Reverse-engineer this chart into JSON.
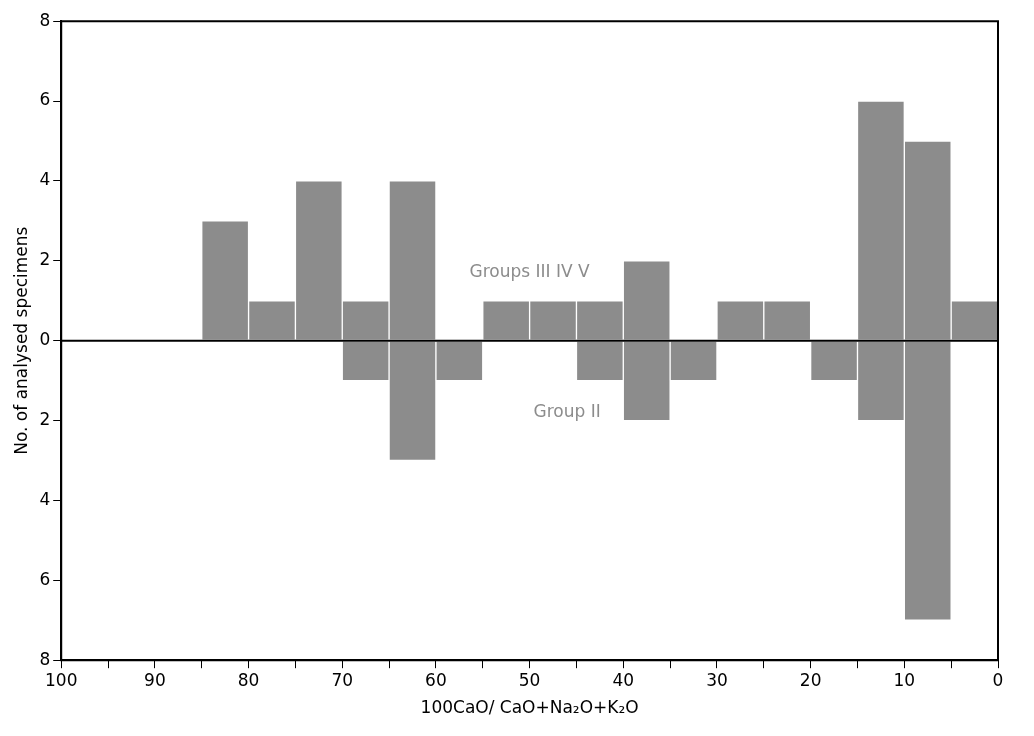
{
  "chart_data": {
    "type": "bar",
    "xlabel": "100CaO/ CaO+Na₂O+K₂O",
    "ylabel": "No. of analysed specimens",
    "x": [
      97.5,
      92.5,
      87.5,
      82.5,
      77.5,
      72.5,
      67.5,
      62.5,
      57.5,
      52.5,
      47.5,
      42.5,
      37.5,
      32.5,
      27.5,
      22.5,
      17.5,
      12.5,
      7.5,
      2.5
    ],
    "series": [
      {
        "name": "Groups III IV V",
        "color": "#8c8c8c",
        "values": [
          0,
          0,
          0,
          3,
          1,
          4,
          1,
          4,
          0,
          1,
          1,
          1,
          2,
          0,
          1,
          1,
          0,
          6,
          5,
          1
        ]
      },
      {
        "name": "Group II",
        "color": "#8c8c8c",
        "values": [
          0,
          0,
          0,
          0,
          0,
          0,
          -1,
          -3,
          -1,
          0,
          0,
          -1,
          -2,
          -1,
          0,
          0,
          -1,
          -2,
          -7,
          0
        ]
      }
    ],
    "xlim": [
      100,
      0
    ],
    "xticks": [
      100,
      {
        "value": 95,
        "label": null
      },
      90,
      {
        "value": 85,
        "label": null
      },
      80,
      {
        "value": 75,
        "label": null
      },
      70,
      {
        "value": 65,
        "label": null
      },
      60,
      {
        "value": 55,
        "label": null
      },
      50,
      {
        "value": 45,
        "label": null
      },
      40,
      {
        "value": 35,
        "label": null
      },
      30,
      {
        "value": 25,
        "label": null
      },
      20,
      {
        "value": 15,
        "label": null
      },
      10,
      {
        "value": 5,
        "label": null
      },
      0
    ],
    "ylim": [
      -8,
      8
    ],
    "yticks": [
      {
        "value": -8,
        "label": "8"
      },
      {
        "value": -6,
        "label": "6"
      },
      {
        "value": -4,
        "label": "4"
      },
      {
        "value": -2,
        "label": "2"
      },
      0,
      2,
      4,
      6,
      8
    ],
    "ref_lines": [
      {
        "axis": "y",
        "value": 0,
        "color": "#000000"
      }
    ],
    "grid": false,
    "legend": false
  }
}
